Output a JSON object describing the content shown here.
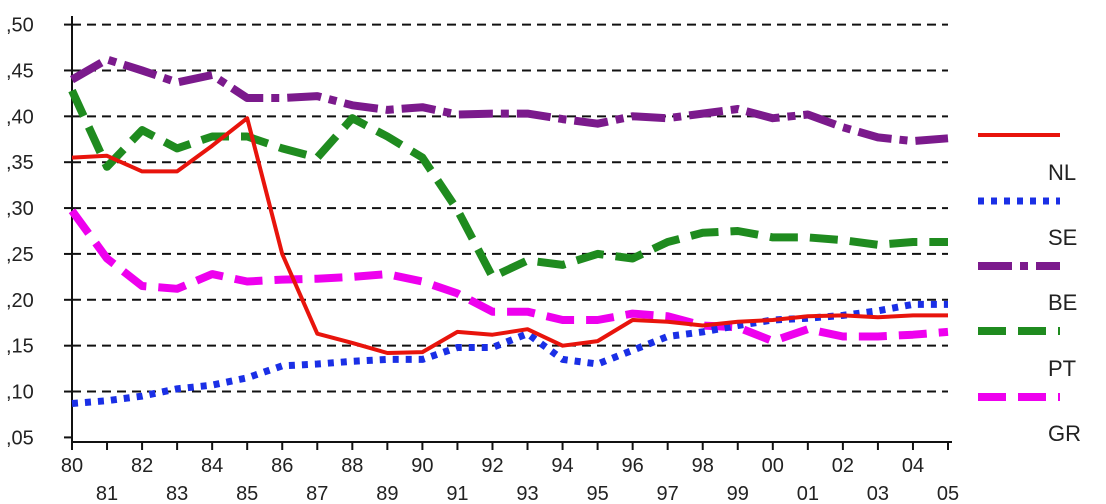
{
  "chart_data": {
    "type": "line",
    "x": [
      1980,
      1981,
      1982,
      1983,
      1984,
      1985,
      1986,
      1987,
      1988,
      1989,
      1990,
      1991,
      1992,
      1993,
      1994,
      1995,
      1996,
      1997,
      1998,
      1999,
      2000,
      2001,
      2002,
      2003,
      2004,
      2005
    ],
    "x_tick_labels_upper": [
      "80",
      "82",
      "84",
      "86",
      "88",
      "90",
      "92",
      "94",
      "96",
      "98",
      "00",
      "02",
      "04"
    ],
    "x_tick_labels_lower": [
      "81",
      "83",
      "85",
      "87",
      "89",
      "91",
      "93",
      "95",
      "97",
      "99",
      "01",
      "03",
      "05"
    ],
    "y_tick_labels": [
      ",05",
      ",10",
      ",15",
      ",20",
      ",25",
      ",30",
      ",35",
      ",40",
      ",45",
      ",50"
    ],
    "y_ticks": [
      0.05,
      0.1,
      0.15,
      0.2,
      0.25,
      0.3,
      0.35,
      0.4,
      0.45,
      0.5
    ],
    "ylim": [
      0.045,
      0.505
    ],
    "grid": "horizontal dashed",
    "legend_position": "right",
    "series": [
      {
        "name": "NL",
        "color": "#e8140c",
        "style": "solid",
        "values": [
          0.355,
          0.357,
          0.34,
          0.34,
          0.368,
          0.398,
          0.25,
          0.163,
          0.153,
          0.142,
          0.143,
          0.165,
          0.162,
          0.168,
          0.15,
          0.155,
          0.178,
          0.176,
          0.172,
          0.176,
          0.178,
          0.182,
          0.183,
          0.181,
          0.183,
          0.183
        ]
      },
      {
        "name": "SE",
        "color": "#1a2fe6",
        "style": "dotted",
        "values": [
          0.087,
          0.09,
          0.095,
          0.103,
          0.107,
          0.115,
          0.128,
          0.13,
          0.133,
          0.135,
          0.135,
          0.148,
          0.148,
          0.163,
          0.135,
          0.13,
          0.145,
          0.16,
          0.165,
          0.172,
          0.178,
          0.18,
          0.183,
          0.188,
          0.195,
          0.195
        ]
      },
      {
        "name": "BE",
        "color": "#7b1a8c",
        "style": "dash-dot",
        "values": [
          0.44,
          0.462,
          0.45,
          0.437,
          0.445,
          0.42,
          0.42,
          0.422,
          0.412,
          0.407,
          0.41,
          0.402,
          0.403,
          0.403,
          0.397,
          0.392,
          0.4,
          0.398,
          0.403,
          0.408,
          0.398,
          0.402,
          0.388,
          0.377,
          0.373,
          0.376
        ]
      },
      {
        "name": "PT",
        "color": "#1f8b1f",
        "style": "dashed",
        "values": [
          0.428,
          0.345,
          0.385,
          0.365,
          0.378,
          0.378,
          0.365,
          0.355,
          0.398,
          0.378,
          0.355,
          0.298,
          0.225,
          0.243,
          0.238,
          0.25,
          0.245,
          0.263,
          0.273,
          0.275,
          0.268,
          0.268,
          0.265,
          0.26,
          0.263,
          0.263
        ]
      },
      {
        "name": "GR",
        "color": "#ee00ee",
        "style": "dashed",
        "values": [
          0.297,
          0.245,
          0.215,
          0.212,
          0.228,
          0.22,
          0.222,
          0.223,
          0.225,
          0.228,
          0.22,
          0.207,
          0.187,
          0.187,
          0.178,
          0.178,
          0.185,
          0.182,
          0.172,
          0.17,
          0.155,
          0.168,
          0.16,
          0.16,
          0.162,
          0.165
        ]
      }
    ]
  },
  "legend": {
    "labels": [
      "NL",
      "SE",
      "BE",
      "PT",
      "GR"
    ]
  }
}
